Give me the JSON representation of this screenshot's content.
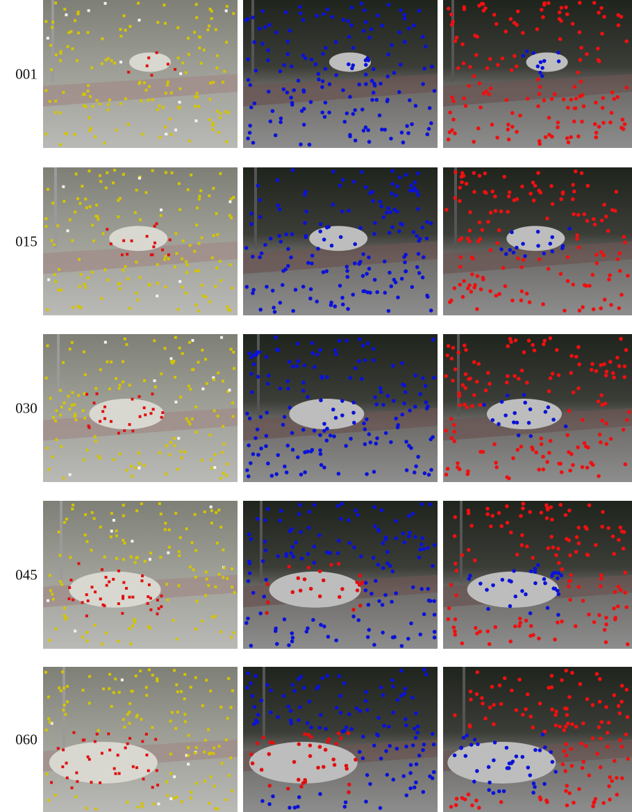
{
  "rows": [
    {
      "label": "001"
    },
    {
      "label": "015"
    },
    {
      "label": "030"
    },
    {
      "label": "045"
    },
    {
      "label": "060"
    }
  ]
}
